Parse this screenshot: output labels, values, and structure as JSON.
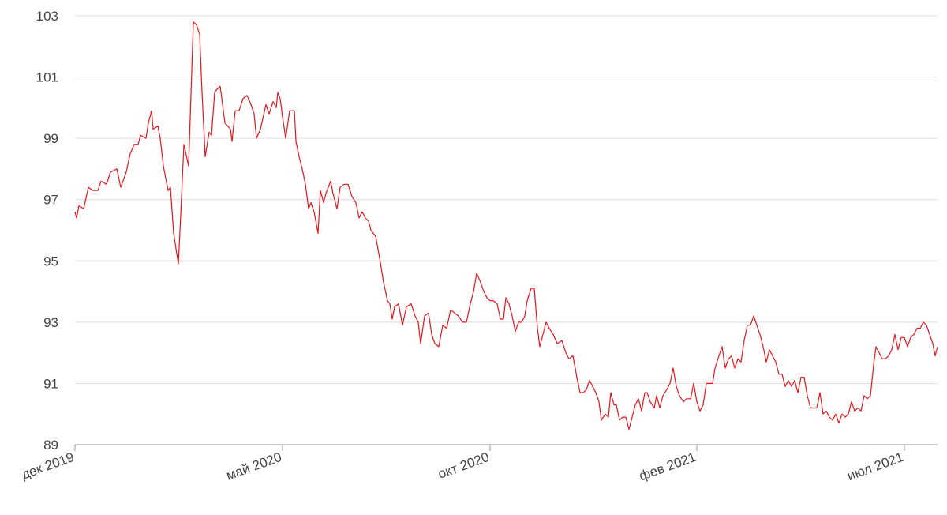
{
  "chart_data": {
    "type": "line",
    "x": [
      0,
      2,
      5,
      11,
      17,
      23,
      29,
      33,
      40,
      45,
      53,
      58,
      65,
      70,
      75,
      80,
      83,
      90,
      93,
      97,
      99,
      105,
      108,
      112,
      118,
      121,
      125,
      131,
      134,
      138,
      144,
      150,
      154,
      158,
      161,
      165,
      170,
      173,
      177,
      180,
      184,
      187,
      190,
      197,
      199,
      203,
      208,
      213,
      218,
      223,
      227,
      230,
      235,
      242,
      246,
      251,
      255,
      257,
      260,
      263,
      267,
      272,
      278,
      280,
      284,
      288,
      292,
      296,
      299,
      303,
      308,
      311,
      315,
      318,
      324,
      327,
      332,
      336,
      341,
      346,
      351,
      356,
      360,
      364,
      368,
      372,
      375,
      381,
      386,
      391,
      396,
      399,
      402,
      405,
      410,
      415,
      420,
      426,
      431,
      435,
      438,
      443,
      448,
      452,
      456,
      461,
      466,
      471,
      476,
      481,
      486,
      491,
      496,
      501,
      505,
      509,
      514,
      518,
      522,
      526,
      530,
      535,
      539,
      543,
      546,
      550,
      554,
      558,
      562,
      566,
      570,
      573,
      578,
      582,
      586,
      589,
      593,
      597,
      601,
      606,
      611,
      617,
      622,
      626,
      631,
      636,
      640,
      644,
      648,
      652,
      656,
      660,
      664,
      667,
      672,
      676,
      679,
      683,
      686,
      690,
      694,
      698,
      702,
      706,
      710,
      714,
      718,
      722,
      725,
      729,
      734,
      737,
      741,
      745,
      750,
      754,
      758,
      762,
      766,
      771,
      775,
      780,
      784,
      788,
      792,
      796,
      800,
      804,
      808,
      811,
      816,
      820,
      824,
      828,
      832,
      836,
      840,
      844,
      848,
      852,
      856,
      860,
      864,
      868,
      872,
      876,
      880,
      884,
      888,
      892,
      896,
      900,
      904,
      908,
      912,
      916,
      920,
      924,
      928,
      932,
      936,
      940,
      944,
      948,
      952,
      956,
      960,
      964,
      968,
      972,
      976,
      980,
      984,
      988,
      992,
      996,
      1000,
      1004,
      1008,
      1012,
      1015,
      1019,
      1023,
      1027,
      1031,
      1035,
      1039,
      1043,
      1047,
      1051,
      1055,
      1059,
      1063,
      1067,
      1071,
      1075,
      1079,
      1083,
      1087,
      1090,
      1093
    ],
    "series": [
      {
        "color": "#e8141c",
        "values": [
          96.6,
          96.4,
          96.8,
          96.7,
          97.4,
          97.3,
          97.3,
          97.6,
          97.5,
          97.9,
          98.0,
          97.4,
          97.9,
          98.5,
          98.8,
          98.8,
          99.1,
          99.0,
          99.5,
          99.9,
          99.3,
          99.4,
          99.0,
          98.1,
          97.3,
          97.4,
          95.9,
          94.9,
          96.5,
          98.8,
          98.1,
          102.8,
          102.7,
          102.4,
          100.5,
          98.4,
          99.2,
          99.1,
          100.5,
          100.6,
          100.7,
          100.1,
          99.5,
          99.3,
          98.9,
          99.9,
          99.9,
          100.3,
          100.4,
          100.1,
          99.8,
          99.0,
          99.3,
          100.1,
          99.8,
          100.2,
          100.0,
          100.5,
          100.3,
          99.7,
          99.0,
          99.9,
          99.9,
          98.9,
          98.4,
          98.0,
          97.5,
          96.7,
          96.9,
          96.6,
          95.9,
          97.3,
          96.9,
          97.2,
          97.6,
          97.2,
          96.7,
          97.4,
          97.5,
          97.5,
          97.1,
          96.9,
          96.4,
          96.6,
          96.4,
          96.3,
          96.0,
          95.8,
          95.1,
          94.3,
          93.7,
          93.6,
          93.1,
          93.5,
          93.6,
          92.9,
          93.5,
          93.6,
          93.2,
          93.0,
          92.3,
          93.2,
          93.3,
          92.6,
          92.3,
          92.2,
          92.9,
          92.8,
          93.4,
          93.3,
          93.2,
          93.0,
          93.0,
          93.6,
          94.0,
          94.6,
          94.3,
          94.0,
          93.8,
          93.7,
          93.7,
          93.6,
          93.1,
          93.1,
          93.8,
          93.6,
          93.2,
          92.7,
          93.0,
          93.0,
          93.2,
          93.7,
          94.1,
          94.1,
          92.8,
          92.2,
          92.6,
          93.0,
          92.8,
          92.6,
          92.3,
          92.4,
          92.0,
          91.8,
          91.9,
          91.2,
          90.7,
          90.7,
          90.8,
          91.1,
          90.9,
          90.7,
          90.4,
          89.8,
          90.0,
          89.9,
          90.7,
          90.3,
          90.3,
          89.8,
          89.9,
          89.9,
          89.5,
          89.9,
          90.3,
          90.5,
          90.1,
          90.7,
          90.7,
          90.4,
          90.2,
          90.6,
          90.2,
          90.6,
          90.8,
          91.0,
          91.5,
          90.9,
          90.6,
          90.4,
          90.5,
          90.5,
          91.0,
          90.4,
          90.1,
          90.3,
          91.0,
          91.0,
          91.0,
          91.5,
          91.9,
          92.2,
          91.5,
          91.8,
          91.9,
          91.5,
          91.8,
          91.7,
          92.4,
          92.9,
          92.9,
          93.2,
          92.9,
          92.6,
          92.2,
          91.7,
          92.1,
          91.9,
          91.7,
          91.3,
          91.3,
          90.9,
          91.1,
          90.9,
          91.1,
          90.7,
          91.2,
          91.2,
          90.6,
          90.2,
          90.2,
          90.2,
          90.7,
          90.0,
          90.1,
          89.9,
          89.8,
          90.0,
          89.7,
          90.0,
          89.9,
          90.0,
          90.4,
          90.1,
          90.2,
          90.1,
          90.6,
          90.5,
          90.6,
          91.6,
          92.2,
          92.0,
          91.8,
          91.8,
          91.9,
          92.1,
          92.6,
          92.1,
          92.5,
          92.5,
          92.2,
          92.5,
          92.6,
          92.8,
          92.8,
          93.0,
          92.9,
          92.6,
          92.3,
          91.9,
          92.2
        ]
      }
    ],
    "xlim": [
      0,
      1093
    ],
    "xticks": [
      {
        "value": 0,
        "label": "дек 2019"
      },
      {
        "value": 263,
        "label": "май 2020"
      },
      {
        "value": 526,
        "label": "окт 2020"
      },
      {
        "value": 788,
        "label": "фев 2021"
      },
      {
        "value": 1051,
        "label": "июл 2021"
      }
    ],
    "ylim": [
      89,
      103
    ],
    "yticks": [
      89,
      91,
      93,
      95,
      97,
      99,
      101,
      103
    ],
    "grid": true
  }
}
